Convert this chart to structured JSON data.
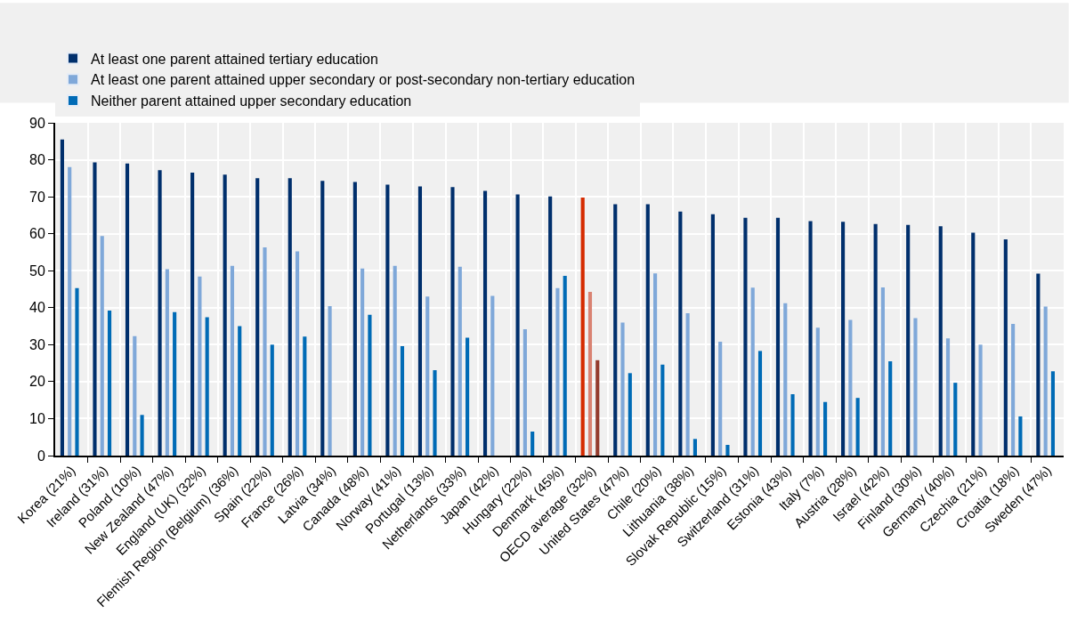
{
  "chart_data": {
    "type": "bar",
    "categories": [
      "Korea (21%)",
      "Ireland (31%)",
      "Poland (10%)",
      "New Zealand (47%)",
      "England (UK) (32%)",
      "Flemish Region (Belgium) (36%)",
      "Spain (22%)",
      "France (26%)",
      "Latvia (34%)",
      "Canada (48%)",
      "Norway (41%)",
      "Portugal (13%)",
      "Netherlands (33%)",
      "Japan (42%)",
      "Hungary (22%)",
      "Denmark (45%)",
      "OECD average (32%)",
      "United States (47%)",
      "Chile (20%)",
      "Lithuania (38%)",
      "Slovak Republic (15%)",
      "Switzerland (31%)",
      "Estonia (43%)",
      "Italy (7%)",
      "Austria (28%)",
      "Israel (42%)",
      "Finland (30%)",
      "Germany (40%)",
      "Czechia (21%)",
      "Croatia (18%)",
      "Sweden (47%)"
    ],
    "series": [
      {
        "name": "At least one parent attained tertiary education",
        "color": "#002f6c",
        "colors": [
          "#002f6c",
          "#002f6c",
          "#002f6c",
          "#002f6c",
          "#002f6c",
          "#002f6c",
          "#002f6c",
          "#002f6c",
          "#002f6c",
          "#002f6c",
          "#002f6c",
          "#002f6c",
          "#002f6c",
          "#002f6c",
          "#002f6c",
          "#002f6c",
          "#d52b00",
          "#002f6c",
          "#002f6c",
          "#002f6c",
          "#002f6c",
          "#002f6c",
          "#002f6c",
          "#002f6c",
          "#002f6c",
          "#002f6c",
          "#002f6c",
          "#002f6c",
          "#002f6c",
          "#002f6c",
          "#002f6c"
        ],
        "values": [
          85.5,
          79.3,
          79,
          77.2,
          76.5,
          76,
          75,
          75,
          74.3,
          74,
          73.3,
          72.8,
          72.6,
          71.6,
          70.6,
          70.1,
          69.8,
          68,
          68,
          66,
          65.3,
          64.3,
          64.3,
          63.4,
          63.2,
          62.6,
          62.4,
          62,
          60.3,
          58.5,
          49.2
        ]
      },
      {
        "name": "At least one parent attained upper secondary or post-secondary non-tertiary education",
        "color": "#7fa8d9",
        "colors": [
          "#7fa8d9",
          "#7fa8d9",
          "#7fa8d9",
          "#7fa8d9",
          "#7fa8d9",
          "#7fa8d9",
          "#7fa8d9",
          "#7fa8d9",
          "#7fa8d9",
          "#7fa8d9",
          "#7fa8d9",
          "#7fa8d9",
          "#7fa8d9",
          "#7fa8d9",
          "#7fa8d9",
          "#7fa8d9",
          "#d98272",
          "#7fa8d9",
          "#7fa8d9",
          "#7fa8d9",
          "#7fa8d9",
          "#7fa8d9",
          "#7fa8d9",
          "#7fa8d9",
          "#7fa8d9",
          "#7fa8d9",
          "#7fa8d9",
          "#7fa8d9",
          "#7fa8d9",
          "#7fa8d9",
          "#7fa8d9"
        ],
        "values": [
          78,
          59.4,
          32.3,
          50.4,
          48.4,
          51.3,
          56.3,
          55.2,
          40.4,
          50.6,
          51.3,
          43,
          51.1,
          43.2,
          34.2,
          45.3,
          44.3,
          36,
          49.3,
          38.5,
          30.8,
          45.4,
          41.2,
          34.6,
          36.7,
          45.5,
          37.2,
          31.7,
          30,
          35.6,
          40.3
        ]
      },
      {
        "name": "Neither parent attained upper secondary education",
        "color": "#006bb6",
        "colors": [
          "#006bb6",
          "#006bb6",
          "#006bb6",
          "#006bb6",
          "#006bb6",
          "#006bb6",
          "#006bb6",
          "#006bb6",
          "#006bb6",
          "#006bb6",
          "#006bb6",
          "#006bb6",
          "#006bb6",
          "#006bb6",
          "#006bb6",
          "#006bb6",
          "#943b2d",
          "#006bb6",
          "#006bb6",
          "#006bb6",
          "#006bb6",
          "#006bb6",
          "#006bb6",
          "#006bb6",
          "#006bb6",
          "#006bb6",
          "#006bb6",
          "#006bb6",
          "#006bb6",
          "#006bb6",
          "#006bb6"
        ],
        "values": [
          45.3,
          39.2,
          11,
          38.8,
          37.4,
          35,
          30,
          32.2,
          null,
          38.1,
          29.6,
          23.1,
          31.9,
          null,
          6.5,
          48.6,
          25.8,
          22.3,
          24.6,
          4.5,
          2.9,
          28.3,
          16.6,
          14.5,
          15.6,
          25.5,
          null,
          19.7,
          null,
          10.6,
          22.8
        ]
      }
    ],
    "ylim": [
      0,
      90
    ],
    "yticks": [
      0,
      10,
      20,
      30,
      40,
      50,
      60,
      70,
      80,
      90
    ],
    "grid": true,
    "legend": "top"
  }
}
